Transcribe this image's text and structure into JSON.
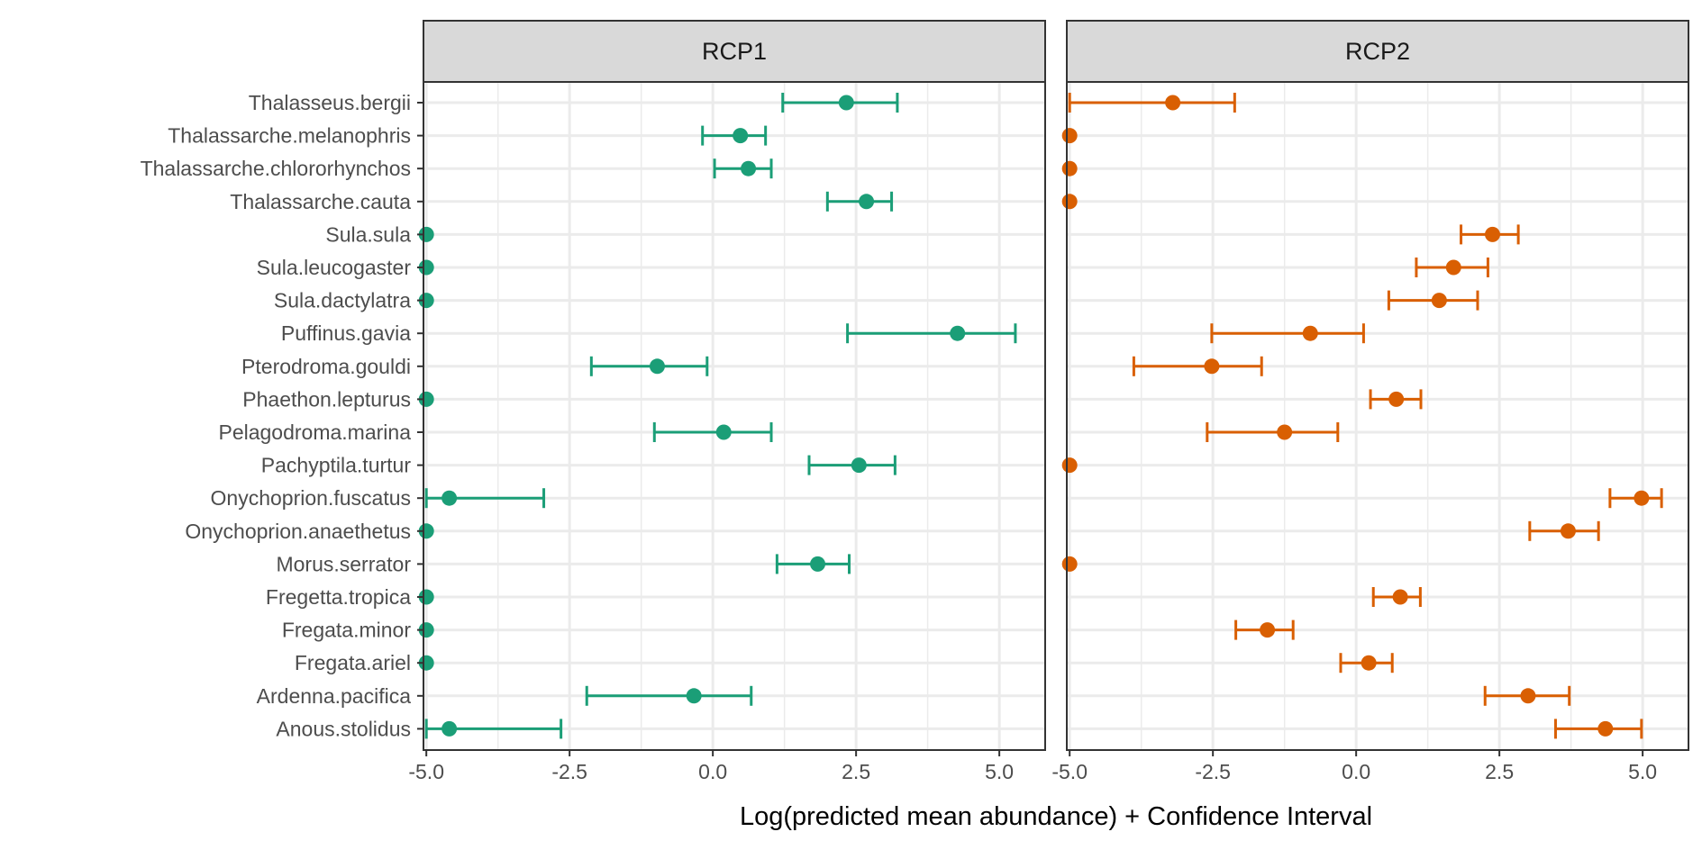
{
  "chart_data": {
    "type": "scatter",
    "subtype": "dot-and-whisker, faceted",
    "xlabel": "Log(predicted mean abundance) + Confidence Interval",
    "xlim": [
      -5.05,
      5.8
    ],
    "x_ticks": [
      -5.0,
      -2.5,
      0.0,
      2.5,
      5.0
    ],
    "x_tick_labels": [
      "-5.0",
      "-2.5",
      "0.0",
      "2.5",
      "5.0"
    ],
    "grid": true,
    "species": [
      "Thalasseus.bergii",
      "Thalassarche.melanophris",
      "Thalassarche.chlororhynchos",
      "Thalassarche.cauta",
      "Sula.sula",
      "Sula.leucogaster",
      "Sula.dactylatra",
      "Puffinus.gavia",
      "Pterodroma.gouldi",
      "Phaethon.lepturus",
      "Pelagodroma.marina",
      "Pachyptila.turtur",
      "Onychoprion.fuscatus",
      "Onychoprion.anaethetus",
      "Morus.serrator",
      "Fregetta.tropica",
      "Fregata.minor",
      "Fregata.ariel",
      "Ardenna.pacifica",
      "Anous.stolidus"
    ],
    "panels": [
      {
        "label": "RCP1",
        "color": "#1b9e77",
        "estimate": [
          2.33,
          0.48,
          0.62,
          2.68,
          -5.0,
          -5.0,
          -5.0,
          4.27,
          -0.97,
          -5.0,
          0.19,
          2.55,
          -4.6,
          -5.0,
          1.83,
          -5.0,
          -5.0,
          -5.0,
          -0.33,
          -4.6
        ],
        "lower": [
          1.22,
          -0.18,
          0.03,
          2.0,
          null,
          null,
          null,
          2.35,
          -2.12,
          null,
          -1.02,
          1.68,
          -5.0,
          null,
          1.12,
          null,
          null,
          null,
          -2.2,
          -5.0
        ],
        "upper": [
          3.22,
          0.92,
          1.02,
          3.12,
          null,
          null,
          null,
          5.28,
          -0.1,
          null,
          1.02,
          3.18,
          -2.95,
          null,
          2.38,
          null,
          null,
          null,
          0.67,
          -2.65
        ]
      },
      {
        "label": "RCP2",
        "color": "#d95f02",
        "estimate": [
          -3.2,
          -5.0,
          -5.0,
          -5.0,
          2.38,
          1.7,
          1.45,
          -0.8,
          -2.52,
          0.7,
          -1.25,
          -5.0,
          4.98,
          3.7,
          -5.0,
          0.77,
          -1.55,
          0.22,
          3.0,
          4.35
        ],
        "lower": [
          -5.0,
          null,
          null,
          null,
          1.83,
          1.05,
          0.57,
          -2.52,
          -3.88,
          0.25,
          -2.6,
          null,
          4.43,
          3.03,
          null,
          0.3,
          -2.1,
          -0.27,
          2.25,
          3.48
        ],
        "upper": [
          -2.12,
          null,
          null,
          null,
          2.83,
          2.3,
          2.12,
          0.13,
          -1.65,
          1.13,
          -0.32,
          null,
          5.33,
          4.23,
          null,
          1.12,
          -1.1,
          0.63,
          3.72,
          4.98
        ]
      }
    ]
  }
}
